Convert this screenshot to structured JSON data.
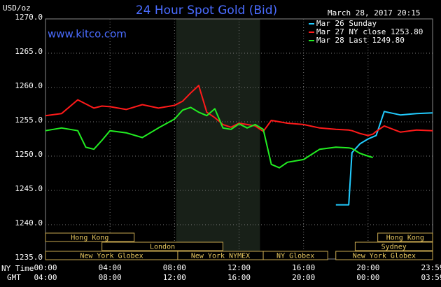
{
  "chart_data": {
    "type": "line",
    "title": "24 Hour Spot Gold (Bid)",
    "unit_label": "USD/oz",
    "watermark": "www.kitco.com",
    "timestamp": "March 28, 2017 20:15",
    "x_axis_label": "NY Time",
    "x2_axis_label": "GMT",
    "x": [
      0,
      1,
      2,
      2.5,
      3,
      3.5,
      4,
      5,
      6,
      7,
      8,
      8.5,
      9,
      9.5,
      10,
      10.5,
      11,
      11.5,
      12,
      12.5,
      13,
      13.5,
      14,
      14.5,
      15,
      16,
      17,
      18,
      18.8,
      19,
      19.5,
      20,
      20.3,
      20.5,
      21,
      22,
      23,
      24
    ],
    "series": [
      {
        "name": "Mar 26 Sunday",
        "color": "#22ccff",
        "values": [
          null,
          null,
          null,
          null,
          null,
          null,
          null,
          null,
          null,
          null,
          null,
          null,
          null,
          null,
          null,
          null,
          null,
          null,
          null,
          null,
          null,
          null,
          null,
          null,
          null,
          null,
          null,
          1242.9,
          1242.9,
          1250.5,
          1251.8,
          1252.5,
          1252.8,
          1253.0,
          1256.5,
          1256.0,
          1256.2,
          1256.3
        ]
      },
      {
        "name": "Mar 27 NY close 1253.80",
        "color": "#ff1a1a",
        "values": [
          1255.9,
          1256.2,
          1258.2,
          1257.6,
          1257.0,
          1257.3,
          1257.2,
          1256.8,
          1257.5,
          1257.0,
          1257.4,
          1258.0,
          1259.2,
          1260.3,
          1256.4,
          1255.6,
          1254.6,
          1254.2,
          1254.8,
          1254.6,
          1254.4,
          1253.6,
          1255.2,
          1255.0,
          1254.8,
          1254.6,
          1254.1,
          1253.9,
          1253.8,
          1253.7,
          1253.3,
          1253.0,
          1253.2,
          1253.6,
          1254.4,
          1253.5,
          1253.8,
          1253.7
        ]
      },
      {
        "name": "Mar 28 Last 1249.80",
        "color": "#22ee22",
        "values": [
          1253.7,
          1254.1,
          1253.7,
          1251.3,
          1251.0,
          1252.3,
          1253.7,
          1253.4,
          1252.7,
          1254.1,
          1255.4,
          1256.7,
          1257.1,
          1256.4,
          1255.9,
          1256.9,
          1254.1,
          1253.9,
          1254.7,
          1254.1,
          1254.6,
          1253.9,
          1248.8,
          1248.3,
          1249.1,
          1249.5,
          1251.0,
          1251.3,
          1251.2,
          1251.1,
          1250.4,
          1250.0,
          1249.8,
          null,
          null,
          null,
          null,
          null
        ]
      }
    ],
    "xlim": [
      0,
      24
    ],
    "xticks": [
      {
        "value": 0,
        "label": "00:00"
      },
      {
        "value": 4,
        "label": "04:00"
      },
      {
        "value": 8,
        "label": "08:00"
      },
      {
        "value": 12,
        "label": "12:00"
      },
      {
        "value": 16,
        "label": "16:00"
      },
      {
        "value": 20,
        "label": "20:00"
      },
      {
        "value": 24,
        "label": "23:59"
      }
    ],
    "x2_tick_labels": [
      "04:00",
      "08:00",
      "12:00",
      "16:00",
      "20:00",
      "00:00",
      "03:59"
    ],
    "ylim": [
      1235,
      1270
    ],
    "yticks": [
      {
        "value": 1235,
        "label": "1235.0"
      },
      {
        "value": 1240,
        "label": "1240.0"
      },
      {
        "value": 1245,
        "label": "1245.0"
      },
      {
        "value": 1250,
        "label": "1250.0"
      },
      {
        "value": 1255,
        "label": "1255.0"
      },
      {
        "value": 1260,
        "label": "1260.0"
      },
      {
        "value": 1265,
        "label": "1265.0"
      },
      {
        "value": 1270,
        "label": "1270.0"
      }
    ],
    "grid": true,
    "legend": "top-right",
    "shaded_range": [
      8.1,
      13.3
    ],
    "session_rows": [
      [
        {
          "label": "Hong Kong",
          "start": 0,
          "end": 5.5
        },
        {
          "label": "Hong Kong",
          "start": 20.6,
          "end": 24
        }
      ],
      [
        {
          "label": "London",
          "start": 3.5,
          "end": 11
        },
        {
          "label": "Sydney",
          "start": 19.2,
          "end": 24
        }
      ],
      [
        {
          "label": "New York Globex",
          "start": 0,
          "end": 8.2
        },
        {
          "label": "New York NYMEX",
          "start": 8.2,
          "end": 13.5
        },
        {
          "label": "NY Globex",
          "start": 13.5,
          "end": 17.5
        },
        {
          "label": "New York Globex",
          "start": 18,
          "end": 24
        }
      ]
    ]
  }
}
